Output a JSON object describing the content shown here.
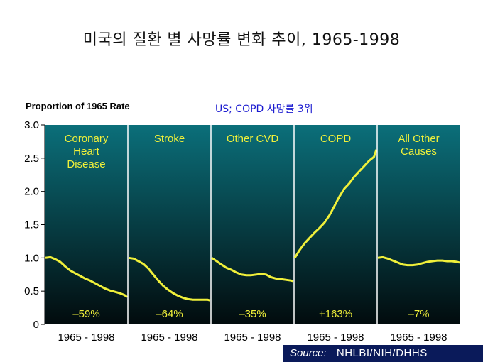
{
  "title": "미국의 질환 별 사망률 변화 추이, 1965-1998",
  "annotation": "US; COPD 사망률 3위",
  "source": {
    "label": "Source:",
    "value": "NHLBI/NIH/DHHS"
  },
  "colors": {
    "panel_top": "#0b6f7a",
    "panel_bottom": "#020b0d",
    "line": "#f0f03a",
    "text": "#f0f03a"
  },
  "chart_data": {
    "type": "line",
    "ylabel": "Proportion of 1965 Rate",
    "ylim": [
      0,
      3.0
    ],
    "yticks": [
      "0",
      "0.5",
      "1.0",
      "1.5",
      "2.0",
      "2.5",
      "3.0"
    ],
    "ytick_values": [
      0,
      0.5,
      1.0,
      1.5,
      2.0,
      2.5,
      3.0
    ],
    "x_range": [
      1965,
      1998
    ],
    "grid": false,
    "panels": [
      {
        "name": "Coronary Heart Disease",
        "name_lines": [
          "Coronary",
          "Heart",
          "Disease"
        ],
        "xlabel": "1965 - 1998",
        "change": "–59%",
        "x": [
          1965,
          1967,
          1969,
          1971,
          1973,
          1975,
          1977,
          1979,
          1981,
          1983,
          1985,
          1987,
          1989,
          1991,
          1993,
          1995,
          1997,
          1998
        ],
        "y": [
          1.0,
          1.01,
          0.98,
          0.94,
          0.87,
          0.81,
          0.77,
          0.73,
          0.69,
          0.66,
          0.62,
          0.58,
          0.54,
          0.51,
          0.49,
          0.47,
          0.44,
          0.41
        ]
      },
      {
        "name": "Stroke",
        "name_lines": [
          "Stroke"
        ],
        "xlabel": "1965 - 1998",
        "change": "–64%",
        "x": [
          1965,
          1967,
          1969,
          1971,
          1973,
          1975,
          1977,
          1979,
          1981,
          1983,
          1985,
          1987,
          1989,
          1991,
          1993,
          1995,
          1997,
          1998
        ],
        "y": [
          1.0,
          0.99,
          0.95,
          0.91,
          0.84,
          0.75,
          0.66,
          0.58,
          0.52,
          0.47,
          0.43,
          0.4,
          0.38,
          0.37,
          0.37,
          0.37,
          0.37,
          0.36
        ]
      },
      {
        "name": "Other CVD",
        "name_lines": [
          "Other CVD"
        ],
        "xlabel": "1965 - 1998",
        "change": "–35%",
        "x": [
          1965,
          1967,
          1969,
          1971,
          1973,
          1975,
          1977,
          1979,
          1981,
          1983,
          1985,
          1987,
          1989,
          1991,
          1993,
          1995,
          1997,
          1998
        ],
        "y": [
          1.0,
          0.95,
          0.9,
          0.85,
          0.82,
          0.78,
          0.75,
          0.74,
          0.74,
          0.75,
          0.76,
          0.75,
          0.71,
          0.69,
          0.68,
          0.67,
          0.66,
          0.65
        ]
      },
      {
        "name": "COPD",
        "name_lines": [
          "COPD"
        ],
        "xlabel": "1965 - 1998",
        "change": "+163%",
        "x": [
          1965,
          1967,
          1969,
          1971,
          1973,
          1975,
          1977,
          1979,
          1981,
          1983,
          1985,
          1987,
          1989,
          1991,
          1993,
          1995,
          1997,
          1998
        ],
        "y": [
          1.0,
          1.12,
          1.22,
          1.3,
          1.38,
          1.45,
          1.53,
          1.64,
          1.78,
          1.92,
          2.04,
          2.12,
          2.22,
          2.3,
          2.38,
          2.46,
          2.52,
          2.63
        ]
      },
      {
        "name": "All Other Causes",
        "name_lines": [
          "All Other",
          "Causes"
        ],
        "xlabel": "1965 - 1998",
        "change": "–7%",
        "x": [
          1965,
          1967,
          1969,
          1971,
          1973,
          1975,
          1977,
          1979,
          1981,
          1983,
          1985,
          1987,
          1989,
          1991,
          1993,
          1995,
          1997,
          1998
        ],
        "y": [
          1.0,
          1.01,
          0.99,
          0.96,
          0.93,
          0.9,
          0.89,
          0.89,
          0.9,
          0.92,
          0.94,
          0.95,
          0.96,
          0.96,
          0.95,
          0.95,
          0.94,
          0.93
        ]
      }
    ]
  }
}
